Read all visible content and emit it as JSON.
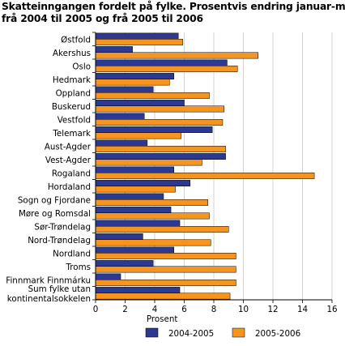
{
  "chart_data": {
    "type": "bar",
    "orientation": "horizontal",
    "title_lines": [
      "Skatteinngangen fordelt på fylke. Prosentvis endring januar-mai",
      "frå 2004 til 2005 og frå 2005 til 2006"
    ],
    "categories": [
      "Østfold",
      "Akershus",
      "Oslo",
      "Hedmark",
      "Oppland",
      "Buskerud",
      "Vestfold",
      "Telemark",
      "Aust-Agder",
      "Vest-Agder",
      "Rogaland",
      "Hordaland",
      "Sogn og Fjordane",
      "Møre og Romsdal",
      "Sør-Trøndelag",
      "Nord-Trøndelag",
      "Nordland",
      "Troms",
      "Finnmark Finnmárku",
      [
        "Sum fylke utan",
        "kontinentalsokkelen"
      ]
    ],
    "series": [
      {
        "name": "2004-2005",
        "color": "#2b3990",
        "values": [
          5.6,
          2.5,
          8.9,
          5.3,
          3.9,
          6.0,
          3.3,
          7.9,
          3.5,
          8.8,
          5.3,
          6.4,
          4.6,
          5.1,
          5.7,
          3.2,
          5.3,
          3.9,
          1.7,
          5.7
        ]
      },
      {
        "name": "2005-2006",
        "color": "#f7941d",
        "values": [
          5.9,
          11.0,
          9.6,
          5.0,
          7.7,
          8.7,
          8.6,
          5.8,
          8.8,
          7.2,
          14.8,
          5.4,
          7.6,
          7.7,
          9.0,
          7.8,
          9.5,
          9.5,
          9.5,
          9.1
        ]
      }
    ],
    "xlim": [
      0,
      16
    ],
    "xticks": [
      0,
      2,
      4,
      6,
      8,
      10,
      12,
      14,
      16
    ],
    "xlabel": "Prosent",
    "ylabel": "",
    "grid": "vertical",
    "legend_placement": "bottom"
  }
}
